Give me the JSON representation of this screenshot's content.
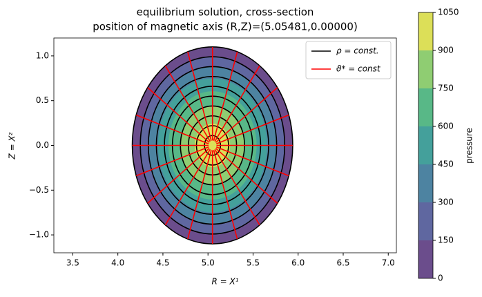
{
  "chart_data": {
    "type": "contour",
    "title": "equilibrium solution, cross-section",
    "subtitle": "position of magnetic axis (R,Z)=(5.05481,0.00000)",
    "xlabel": "R = X¹",
    "ylabel": "Z = X²",
    "xlim": [
      3.29,
      7.09
    ],
    "ylim": [
      -1.2,
      1.2
    ],
    "xticks": [
      {
        "value": 3.5,
        "label": "3.5"
      },
      {
        "value": 4,
        "label": "4.0"
      },
      {
        "value": 4.5,
        "label": "4.5"
      },
      {
        "value": 5,
        "label": "5.0"
      },
      {
        "value": 5.5,
        "label": "5.5"
      },
      {
        "value": 6,
        "label": "6.0"
      },
      {
        "value": 6.5,
        "label": "6.5"
      },
      {
        "value": 7,
        "label": "7.0"
      }
    ],
    "yticks": [
      {
        "value": -1,
        "label": "−1.0"
      },
      {
        "value": -0.5,
        "label": "−0.5"
      },
      {
        "value": 0,
        "label": "0.0"
      },
      {
        "value": 0.5,
        "label": "0.5"
      },
      {
        "value": 1,
        "label": "1.0"
      }
    ],
    "center": [
      5.05,
      0.0
    ],
    "semi_axes": [
      0.89,
      1.1
    ],
    "rho_contours": {
      "name": "ρ = const.",
      "color": "#000000",
      "values": [
        0.1,
        0.2,
        0.3,
        0.4,
        0.5,
        0.6,
        0.7,
        0.8,
        0.9,
        1.0
      ]
    },
    "theta_lines": {
      "name": "ϑ* = const",
      "color": "#ff0000",
      "angles_deg": [
        0,
        18,
        36,
        54,
        72,
        90,
        108,
        126,
        144,
        162,
        180,
        198,
        216,
        234,
        252,
        270,
        288,
        306,
        324,
        342
      ],
      "rho_range": [
        0.05,
        1.0
      ]
    },
    "pressure_band_outer_rho": [
      1.0,
      0.9,
      0.8,
      0.68,
      0.55,
      0.4,
      0.22
    ],
    "colorbar": {
      "label": "pressure",
      "lim": [
        0,
        1050
      ],
      "ticks": [
        0,
        150,
        300,
        450,
        600,
        750,
        900,
        1050
      ],
      "colors": [
        "#6b4d8c",
        "#5f67a0",
        "#4d83a1",
        "#44a09b",
        "#58b887",
        "#8fcd72",
        "#dcdf58"
      ]
    },
    "legend": "upper right"
  }
}
